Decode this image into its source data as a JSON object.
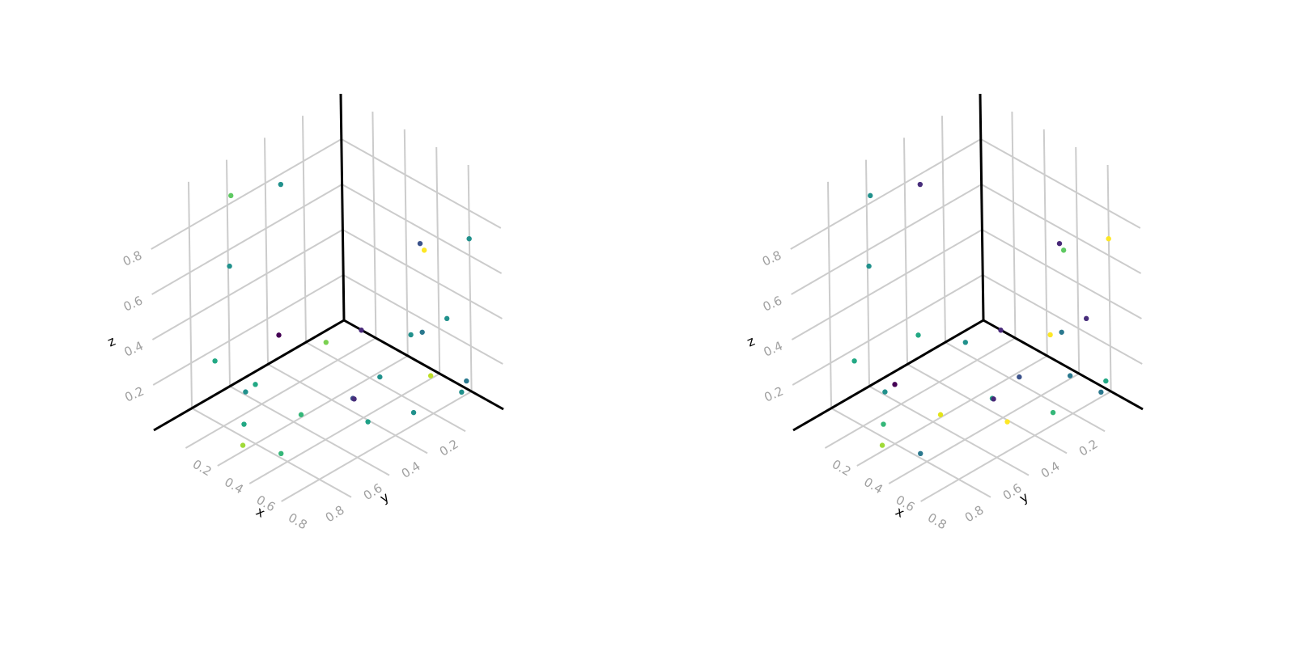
{
  "chart_data": [
    {
      "type": "scatter",
      "projection": "3d",
      "axis_labels": {
        "x": "x",
        "y": "y",
        "z": "z"
      },
      "xlim": [
        0,
        1
      ],
      "ylim": [
        0,
        1
      ],
      "zlim": [
        0,
        1
      ],
      "ticks": {
        "x": [
          0.2,
          0.4,
          0.6,
          0.8
        ],
        "y": [
          0.2,
          0.4,
          0.6,
          0.8
        ],
        "z": [
          0.2,
          0.4,
          0.6,
          0.8
        ]
      },
      "tick_labels": {
        "x": [
          "0.2",
          "0.4",
          "0.6",
          "0.8"
        ],
        "y": [
          "0.2",
          "0.4",
          "0.6",
          "0.8"
        ],
        "z": [
          "0.2",
          "0.4",
          "0.6",
          "0.8"
        ]
      },
      "grid": true,
      "colormap": "viridis",
      "points": [
        {
          "x": 0.06,
          "y": 0.63,
          "z": 0.88,
          "color": "#5ec962"
        },
        {
          "x": 0.17,
          "y": 0.46,
          "z": 0.89,
          "color": "#21918c"
        },
        {
          "x": 0.13,
          "y": 0.7,
          "z": 0.63,
          "color": "#21918c"
        },
        {
          "x": 0.5,
          "y": 0.01,
          "z": 0.54,
          "color": "#3b528b"
        },
        {
          "x": 0.55,
          "y": 0.03,
          "z": 0.54,
          "color": "#fde725"
        },
        {
          "x": 0.92,
          "y": 0.1,
          "z": 0.77,
          "color": "#21918c"
        },
        {
          "x": 0.47,
          "y": 0.04,
          "z": 0.14,
          "color": "#21918c"
        },
        {
          "x": 0.44,
          "y": 0.18,
          "z": 0.01,
          "color": "#21918c"
        },
        {
          "x": 0.43,
          "y": 0.45,
          "z": 0.29,
          "color": "#7ad151"
        },
        {
          "x": 0.29,
          "y": 0.58,
          "z": 0.33,
          "color": "#440154"
        },
        {
          "x": 0.4,
          "y": 0.24,
          "z": 0.23,
          "color": "#482878"
        },
        {
          "x": 0.21,
          "y": 0.64,
          "z": 0.11,
          "color": "#22a884"
        },
        {
          "x": 0.81,
          "y": 0.06,
          "z": 0.03,
          "color": "#21918c"
        },
        {
          "x": 0.76,
          "y": 0.09,
          "z": 0.35,
          "color": "#21918c"
        },
        {
          "x": 0.53,
          "y": 0.03,
          "z": 0.17,
          "color": "#2a788e"
        },
        {
          "x": 0.81,
          "y": 0.22,
          "z": 0.18,
          "color": "#bddf26"
        },
        {
          "x": 0.09,
          "y": 0.75,
          "z": 0.22,
          "color": "#22a884"
        },
        {
          "x": 0.89,
          "y": 0.1,
          "z": 0.13,
          "color": "#2a788e"
        },
        {
          "x": 0.28,
          "y": 0.76,
          "z": 0.02,
          "color": "#22a884"
        },
        {
          "x": 0.51,
          "y": 0.38,
          "z": 0.04,
          "color": "#3b528b"
        },
        {
          "x": 0.22,
          "y": 0.7,
          "z": 0.11,
          "color": "#21918c"
        },
        {
          "x": 0.53,
          "y": 0.39,
          "z": 0.05,
          "color": "#472d7b"
        },
        {
          "x": 0.46,
          "y": 0.61,
          "z": 0.06,
          "color": "#35b779"
        },
        {
          "x": 0.7,
          "y": 0.46,
          "z": 0.05,
          "color": "#1fa187"
        },
        {
          "x": 0.82,
          "y": 0.32,
          "z": 0.07,
          "color": "#21918c"
        },
        {
          "x": 0.38,
          "y": 0.85,
          "z": 0.01,
          "color": "#a0da39"
        },
        {
          "x": 0.56,
          "y": 0.8,
          "z": 0.02,
          "color": "#35b779"
        }
      ]
    },
    {
      "type": "scatter",
      "projection": "3d",
      "axis_labels": {
        "x": "x",
        "y": "y",
        "z": "z"
      },
      "xlim": [
        0,
        1
      ],
      "ylim": [
        0,
        1
      ],
      "zlim": [
        0,
        1
      ],
      "ticks": {
        "x": [
          0.2,
          0.4,
          0.6,
          0.8
        ],
        "y": [
          0.2,
          0.4,
          0.6,
          0.8
        ],
        "z": [
          0.2,
          0.4,
          0.6,
          0.8
        ]
      },
      "tick_labels": {
        "x": [
          "0.2",
          "0.4",
          "0.6",
          "0.8"
        ],
        "y": [
          "0.2",
          "0.4",
          "0.6",
          "0.8"
        ],
        "z": [
          "0.2",
          "0.4",
          "0.6",
          "0.8"
        ]
      },
      "grid": true,
      "colormap": "viridis",
      "points": [
        {
          "x": 0.06,
          "y": 0.63,
          "z": 0.88,
          "color": "#21918c"
        },
        {
          "x": 0.17,
          "y": 0.46,
          "z": 0.89,
          "color": "#472d7b"
        },
        {
          "x": 0.13,
          "y": 0.7,
          "z": 0.63,
          "color": "#21918c"
        },
        {
          "x": 0.5,
          "y": 0.01,
          "z": 0.54,
          "color": "#482878"
        },
        {
          "x": 0.55,
          "y": 0.03,
          "z": 0.54,
          "color": "#5ec962"
        },
        {
          "x": 0.92,
          "y": 0.1,
          "z": 0.77,
          "color": "#fde725"
        },
        {
          "x": 0.47,
          "y": 0.04,
          "z": 0.14,
          "color": "#fde725"
        },
        {
          "x": 0.44,
          "y": 0.18,
          "z": 0.01,
          "color": "#3b528b"
        },
        {
          "x": 0.43,
          "y": 0.45,
          "z": 0.29,
          "color": "#21918c"
        },
        {
          "x": 0.29,
          "y": 0.58,
          "z": 0.33,
          "color": "#22a884"
        },
        {
          "x": 0.4,
          "y": 0.24,
          "z": 0.23,
          "color": "#482878"
        },
        {
          "x": 0.21,
          "y": 0.64,
          "z": 0.11,
          "color": "#440154"
        },
        {
          "x": 0.81,
          "y": 0.06,
          "z": 0.03,
          "color": "#2a788e"
        },
        {
          "x": 0.76,
          "y": 0.09,
          "z": 0.35,
          "color": "#472d7b"
        },
        {
          "x": 0.53,
          "y": 0.03,
          "z": 0.17,
          "color": "#2a788e"
        },
        {
          "x": 0.81,
          "y": 0.22,
          "z": 0.18,
          "color": "#2a788e"
        },
        {
          "x": 0.09,
          "y": 0.75,
          "z": 0.22,
          "color": "#22a884"
        },
        {
          "x": 0.89,
          "y": 0.1,
          "z": 0.13,
          "color": "#22a884"
        },
        {
          "x": 0.28,
          "y": 0.76,
          "z": 0.02,
          "color": "#35b779"
        },
        {
          "x": 0.51,
          "y": 0.38,
          "z": 0.04,
          "color": "#22a884"
        },
        {
          "x": 0.22,
          "y": 0.7,
          "z": 0.11,
          "color": "#21918c"
        },
        {
          "x": 0.53,
          "y": 0.39,
          "z": 0.05,
          "color": "#482878"
        },
        {
          "x": 0.46,
          "y": 0.61,
          "z": 0.06,
          "color": "#e3e418"
        },
        {
          "x": 0.7,
          "y": 0.46,
          "z": 0.05,
          "color": "#fde725"
        },
        {
          "x": 0.82,
          "y": 0.32,
          "z": 0.07,
          "color": "#35b779"
        },
        {
          "x": 0.38,
          "y": 0.85,
          "z": 0.01,
          "color": "#a0da39"
        },
        {
          "x": 0.56,
          "y": 0.8,
          "z": 0.02,
          "color": "#2a788e"
        }
      ]
    }
  ]
}
